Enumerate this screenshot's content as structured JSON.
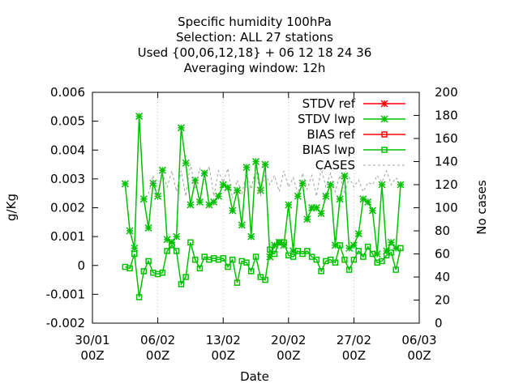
{
  "chart_data": {
    "type": "line",
    "title_lines": [
      "Specific humidity 100hPa",
      "Selection: ALL     27 stations",
      "Used {00,06,12,18} + 06 12 18 24 36",
      "Averaging window: 12h"
    ],
    "xlabel": "Date",
    "ylabel": "g/Kg",
    "y2label": "No cases",
    "xlim": [
      0,
      35
    ],
    "ylim": [
      -0.002,
      0.006
    ],
    "y2lim": [
      0,
      200
    ],
    "x_unit": "days after 30/01 00Z",
    "x_ticks": [
      {
        "line1": "30/01",
        "line2": "00Z"
      },
      {
        "line1": "06/02",
        "line2": "00Z"
      },
      {
        "line1": "13/02",
        "line2": "00Z"
      },
      {
        "line1": "20/02",
        "line2": "00Z"
      },
      {
        "line1": "27/02",
        "line2": "00Z"
      },
      {
        "line1": "06/03",
        "line2": "00Z"
      }
    ],
    "x_tick_values": [
      0,
      7,
      14,
      21,
      28,
      35
    ],
    "y_ticks": [
      "-0.002",
      "-0.001",
      "0",
      "0.001",
      "0.002",
      "0.003",
      "0.004",
      "0.005",
      "0.006"
    ],
    "y_tick_values": [
      -0.002,
      -0.001,
      0,
      0.001,
      0.002,
      0.003,
      0.004,
      0.005,
      0.006
    ],
    "y2_ticks": [
      "0",
      "20",
      "40",
      "60",
      "80",
      "100",
      "120",
      "140",
      "160",
      "180",
      "200"
    ],
    "y2_tick_values": [
      0,
      20,
      40,
      60,
      80,
      100,
      120,
      140,
      160,
      180,
      200
    ],
    "legend_position": "top-right",
    "legend": [
      {
        "label": "STDV ref",
        "color": "#ff0000",
        "marker": "star",
        "dash": false
      },
      {
        "label": "STDV lwp",
        "color": "#00c000",
        "marker": "star",
        "dash": false
      },
      {
        "label": "BIAS ref",
        "color": "#ff0000",
        "marker": "square",
        "dash": false
      },
      {
        "label": "BIAS lwp",
        "color": "#00c000",
        "marker": "square",
        "dash": false
      },
      {
        "label": "CASES",
        "color": "#a0a0a0",
        "marker": "none",
        "dash": true
      }
    ],
    "series": [
      {
        "name": "STDV lwp",
        "color": "#00c000",
        "marker": "star",
        "x": [
          3.5,
          4.0,
          4.5,
          5.0,
          5.5,
          6.0,
          6.5,
          7.0,
          7.5,
          8.0,
          8.5,
          9.0,
          9.5,
          10.0,
          10.5,
          11.0,
          11.5,
          12.0,
          12.5,
          13.0,
          13.5,
          14.0,
          14.5,
          15.0,
          15.5,
          16.0,
          16.5,
          17.0,
          17.5,
          18.0,
          18.5,
          19.0,
          19.5,
          20.0,
          20.5,
          21.0,
          21.5,
          22.0,
          22.5,
          23.0,
          23.5,
          24.0,
          24.5,
          25.0,
          25.5,
          26.0,
          26.5,
          27.0,
          27.5,
          28.0,
          28.5,
          29.0,
          29.5,
          30.0,
          30.5,
          31.0,
          31.5,
          32.0,
          32.5,
          33.0
        ],
        "values": [
          0.00283,
          0.0012,
          0.0006,
          0.00517,
          0.0023,
          0.0013,
          0.00285,
          0.0024,
          0.0033,
          0.0009,
          0.0008,
          0.001,
          0.00477,
          0.00355,
          0.0021,
          0.00295,
          0.0022,
          0.0032,
          0.0021,
          0.0022,
          0.0024,
          0.0028,
          0.0027,
          0.0019,
          0.0026,
          0.0014,
          0.0034,
          0.001,
          0.0036,
          0.0026,
          0.0035,
          0.0003,
          0.0007,
          0.0008,
          0.0007,
          0.0021,
          0.0005,
          0.0024,
          0.00285,
          0.0016,
          0.002,
          0.002,
          0.0018,
          0.0024,
          0.0028,
          0.0007,
          0.0023,
          0.0031,
          0.0006,
          0.0007,
          0.0011,
          0.0023,
          0.0022,
          0.0019,
          0.0004,
          0.0028,
          0.0005,
          0.0008,
          0.0006,
          0.0028
        ]
      },
      {
        "name": "BIAS lwp",
        "color": "#00c000",
        "marker": "square",
        "x": [
          3.5,
          4.0,
          4.5,
          5.0,
          5.5,
          6.0,
          6.5,
          7.0,
          7.5,
          8.0,
          8.5,
          9.0,
          9.5,
          10.0,
          10.5,
          11.0,
          11.5,
          12.0,
          12.5,
          13.0,
          13.5,
          14.0,
          14.5,
          15.0,
          15.5,
          16.0,
          16.5,
          17.0,
          17.5,
          18.0,
          18.5,
          19.0,
          19.5,
          20.0,
          20.5,
          21.0,
          21.5,
          22.0,
          22.5,
          23.0,
          23.5,
          24.0,
          24.5,
          25.0,
          25.5,
          26.0,
          26.5,
          27.0,
          27.5,
          28.0,
          28.5,
          29.0,
          29.5,
          30.0,
          30.5,
          31.0,
          31.5,
          32.0,
          32.5,
          33.0
        ],
        "values": [
          -5e-05,
          -0.0001,
          0.0004,
          -0.0011,
          -0.0002,
          0.00015,
          -0.00025,
          -0.0003,
          -0.00025,
          0.0005,
          0.0007,
          0.0005,
          -0.00065,
          -0.0004,
          0.0008,
          0.0002,
          -0.0001,
          0.0003,
          0.0002,
          0.00025,
          0.0002,
          0.00025,
          -5e-05,
          0.0002,
          -0.0006,
          0.00015,
          0.0001,
          -0.0002,
          0.0003,
          -0.0004,
          -0.0005,
          0.00055,
          0.0004,
          0.0008,
          0.0008,
          0.00035,
          0.0003,
          0.0005,
          0.0004,
          0.0005,
          0.0003,
          0.0002,
          -0.0002,
          0.00015,
          0.0002,
          0.0001,
          0.0007,
          0.0002,
          -0.00015,
          0.0002,
          0.0005,
          0.0003,
          0.00065,
          0.0004,
          0.0001,
          0.00015,
          0.00035,
          0.00045,
          -0.00015,
          0.0006
        ]
      },
      {
        "name": "CASES",
        "color": "#a0a0a0",
        "marker": "none",
        "axis": "y2",
        "x": [
          6.0,
          6.5,
          7.0,
          7.5,
          8.0,
          8.5,
          9.0,
          9.5,
          10.0,
          10.5,
          11.0,
          11.5,
          12.0,
          12.5,
          13.0,
          13.5,
          14.0,
          14.5,
          15.0,
          15.5,
          16.0,
          16.5,
          17.0,
          17.5,
          18.0,
          18.5,
          19.0,
          19.5,
          20.0,
          20.5,
          21.0,
          21.5,
          22.0,
          22.5,
          23.0,
          23.5,
          24.0,
          24.5,
          25.0,
          25.5,
          26.0,
          26.5,
          27.0,
          27.5,
          28.0,
          28.5,
          29.0,
          29.5,
          30.0,
          30.5,
          31.0,
          31.5,
          32.0,
          32.5,
          33.0
        ],
        "values": [
          112,
          128,
          108,
          130,
          118,
          132,
          114,
          132,
          110,
          138,
          116,
          134,
          124,
          136,
          110,
          132,
          122,
          134,
          108,
          124,
          112,
          130,
          116,
          134,
          110,
          130,
          120,
          128,
          114,
          132,
          118,
          126,
          112,
          130,
          116,
          128,
          110,
          134,
          118,
          130,
          114,
          128,
          112,
          126,
          118,
          124,
          114,
          122,
          120,
          128,
          122,
          132,
          120,
          126,
          120
        ]
      }
    ]
  }
}
